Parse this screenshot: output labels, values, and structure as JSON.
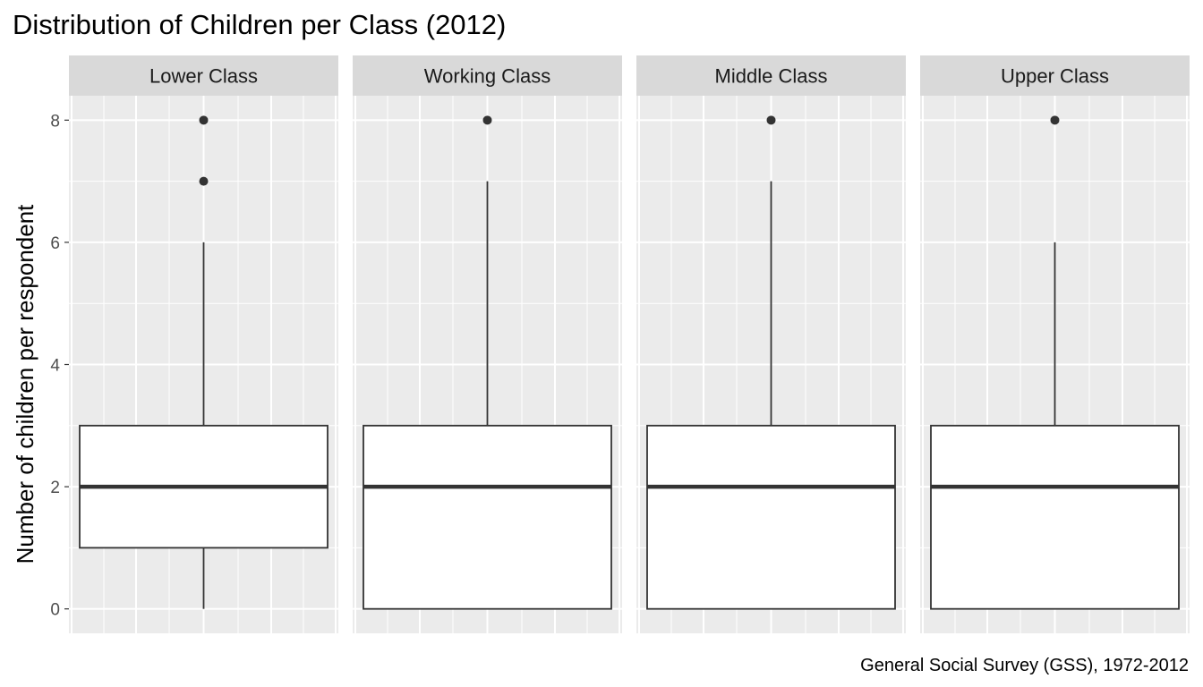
{
  "title": "Distribution of Children per Class (2012)",
  "caption": "General Social Survey (GSS), 1972-2012",
  "colors": {
    "panel_background": "#EBEBEB",
    "strip_background": "#D9D9D9",
    "grid_major": "#FFFFFF",
    "box_fill": "#FFFFFF",
    "box_stroke": "#333333",
    "outlier": "#333333"
  },
  "chart_data": {
    "type": "boxplot",
    "title": "Distribution of Children per Class (2012)",
    "ylabel": "Number of children per respondent",
    "xlabel": "",
    "ylim": [
      -0.4,
      8.4
    ],
    "yticks": [
      0,
      2,
      4,
      6,
      8
    ],
    "grid": true,
    "facets": [
      {
        "label": "Lower Class",
        "min": 0,
        "q1": 1,
        "median": 2,
        "q3": 3,
        "max": 6,
        "outliers": [
          7,
          8
        ]
      },
      {
        "label": "Working Class",
        "min": 0,
        "q1": 0,
        "median": 2,
        "q3": 3,
        "max": 7,
        "outliers": [
          8
        ]
      },
      {
        "label": "Middle Class",
        "min": 0,
        "q1": 0,
        "median": 2,
        "q3": 3,
        "max": 7,
        "outliers": [
          8
        ]
      },
      {
        "label": "Upper Class",
        "min": 0,
        "q1": 0,
        "median": 2,
        "q3": 3,
        "max": 6,
        "outliers": [
          8
        ]
      }
    ]
  }
}
